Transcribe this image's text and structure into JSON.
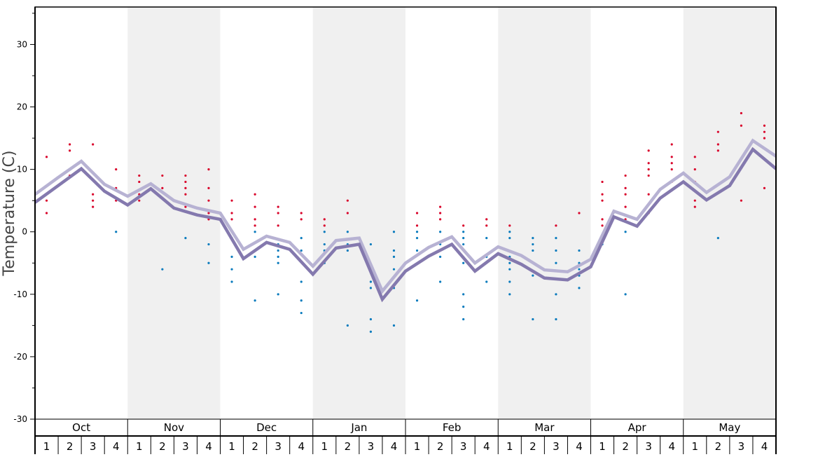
{
  "chart_data": {
    "type": "line",
    "title": "",
    "ylabel": "Temperature (C)",
    "xlabel": "",
    "ylim": [
      -30,
      36
    ],
    "yticks": [
      30,
      20,
      10,
      0,
      -10,
      -20,
      -30
    ],
    "months": [
      "Oct",
      "Nov",
      "Dec",
      "Jan",
      "Feb",
      "Mar",
      "Apr",
      "May"
    ],
    "week_labels": [
      "1",
      "2",
      "3",
      "4"
    ],
    "colors": {
      "line_dark": "#8479ae",
      "line_light": "#b7b2d3",
      "high": "#d9042b",
      "low": "#0a7bbd",
      "band": "#f0f0f0"
    },
    "series": [
      {
        "name": "line-dark",
        "values": [
          4.7,
          7.4,
          10.1,
          6.5,
          4.3,
          6.9,
          3.8,
          2.7,
          2.0,
          -4.3,
          -1.7,
          -2.8,
          -6.8,
          -2.6,
          -2.0,
          -10.8,
          -6.3,
          -3.9,
          -2.0,
          -6.3,
          -3.5,
          -5.2,
          -7.4,
          -7.7,
          -5.6,
          2.4,
          0.9,
          5.4,
          8.0,
          5.1,
          7.4,
          13.2,
          10.1
        ]
      },
      {
        "name": "line-light",
        "values": [
          6.0,
          8.7,
          11.3,
          7.6,
          5.7,
          7.7,
          5.0,
          3.8,
          3.0,
          -2.8,
          -0.7,
          -1.7,
          -5.5,
          -1.4,
          -1.0,
          -9.5,
          -5.0,
          -2.5,
          -0.8,
          -5.0,
          -2.4,
          -3.8,
          -6.1,
          -6.4,
          -4.4,
          3.3,
          2.0,
          6.8,
          9.4,
          6.3,
          8.8,
          14.6,
          12.1
        ]
      }
    ],
    "weekly_highs": [
      [
        12,
        5,
        3
      ],
      [
        14,
        13,
        9
      ],
      [
        14,
        6,
        5,
        4
      ],
      [
        10,
        7,
        5
      ],
      [
        9,
        8,
        6,
        5
      ],
      [
        9,
        7
      ],
      [
        9,
        8,
        7,
        6,
        4
      ],
      [
        10,
        7,
        5,
        3,
        2
      ],
      [
        5,
        3,
        2
      ],
      [
        6,
        4,
        2,
        1
      ],
      [
        4,
        3,
        1
      ],
      [
        3,
        2
      ],
      [
        2,
        1
      ],
      [
        5,
        3
      ],
      [],
      [],
      [
        3,
        1
      ],
      [
        4,
        3,
        2
      ],
      [
        1
      ],
      [
        2,
        1
      ],
      [
        1
      ],
      [],
      [
        1
      ],
      [
        3
      ],
      [
        8,
        6,
        5,
        2,
        1
      ],
      [
        9,
        7,
        6,
        4,
        2
      ],
      [
        13,
        11,
        10,
        9,
        6,
        3
      ],
      [
        14,
        12,
        11,
        10,
        8
      ],
      [
        12,
        10,
        8,
        5,
        4
      ],
      [
        16,
        14,
        13
      ],
      [
        19,
        17,
        5
      ],
      [
        17,
        16,
        15,
        7
      ]
    ],
    "weekly_lows": [
      [],
      [],
      [],
      [
        0
      ],
      [],
      [
        -6
      ],
      [
        -1
      ],
      [
        -2,
        -5
      ],
      [
        -1,
        -4,
        -6,
        -8
      ],
      [
        0,
        -4,
        -11
      ],
      [
        -2,
        -3,
        -4,
        -5,
        -10
      ],
      [
        -1,
        -3,
        -8,
        -11,
        -13
      ],
      [
        0,
        -2,
        -3,
        -5
      ],
      [
        0,
        -2,
        -3,
        -15
      ],
      [
        -2,
        -8,
        -9,
        -14,
        -16
      ],
      [
        0,
        -3,
        -4,
        -6,
        -9,
        -15
      ],
      [
        0,
        -1,
        -3,
        -11
      ],
      [
        0,
        -2,
        -4,
        -8
      ],
      [
        0,
        -1,
        -2,
        -5,
        -10,
        -12,
        -14
      ],
      [
        -1,
        -4,
        -8
      ],
      [
        0,
        -1,
        -4,
        -5,
        -6,
        -8,
        -10
      ],
      [
        -1,
        -2,
        -3,
        -7,
        -14
      ],
      [
        -1,
        -3,
        -5,
        -10,
        -14
      ],
      [
        -3,
        -5,
        -6,
        -7,
        -9
      ],
      [
        -2
      ],
      [
        0,
        -10
      ],
      [],
      [],
      [],
      [
        -1
      ],
      [],
      []
    ]
  }
}
